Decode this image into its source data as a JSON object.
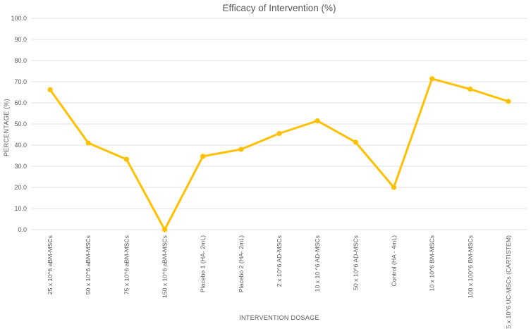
{
  "chart_data": {
    "type": "line",
    "title": "Efficacy of Intervention (%)",
    "xlabel": "INTERVENTION DOSAGE",
    "ylabel": "PERCENTAGE (%)",
    "ylim": [
      0,
      100
    ],
    "ytick_step": 10,
    "ytick_labels": [
      "0.0",
      "10.0",
      "20.0",
      "30.0",
      "40.0",
      "50.0",
      "60.0",
      "70.0",
      "80.0",
      "90.0",
      "100.0"
    ],
    "grid": "horizontal-only",
    "legend": "none",
    "categories": [
      "25 x 10^6 aBM-MSCs",
      "50 x 10^6 aBM-MSCs",
      "75 x 10^6 aBM-MSCs",
      "150 x 10^6 aBM-MSCs",
      "Placebo 1 (HA- 2mL)",
      "Placebo 2 (HA- 2mL)",
      "2 x 10^6 AD-MSCs",
      "10 x 10 ^6 AD-MSCs",
      "50 x 10^6 AD-MSCs",
      "Control (HA - 4mL)",
      "10 x 10^6 BM-MSCs",
      "100 x 100^6 BM-MSCs",
      "5 x 10^6 UC-MSCs (CARTISTEM)"
    ],
    "series": [
      {
        "name": "Efficacy of Intervention",
        "values": [
          66.2,
          41.0,
          33.3,
          0.0,
          34.7,
          38.0,
          45.5,
          51.5,
          41.4,
          20.0,
          71.4,
          66.5,
          60.7
        ]
      }
    ]
  },
  "colors": {
    "line": "#FFC000",
    "marker": "#FFC000",
    "gridline": "#E2E2E2",
    "text": "#595959",
    "tick_text": "#595959",
    "background": "#FFFFFF"
  }
}
